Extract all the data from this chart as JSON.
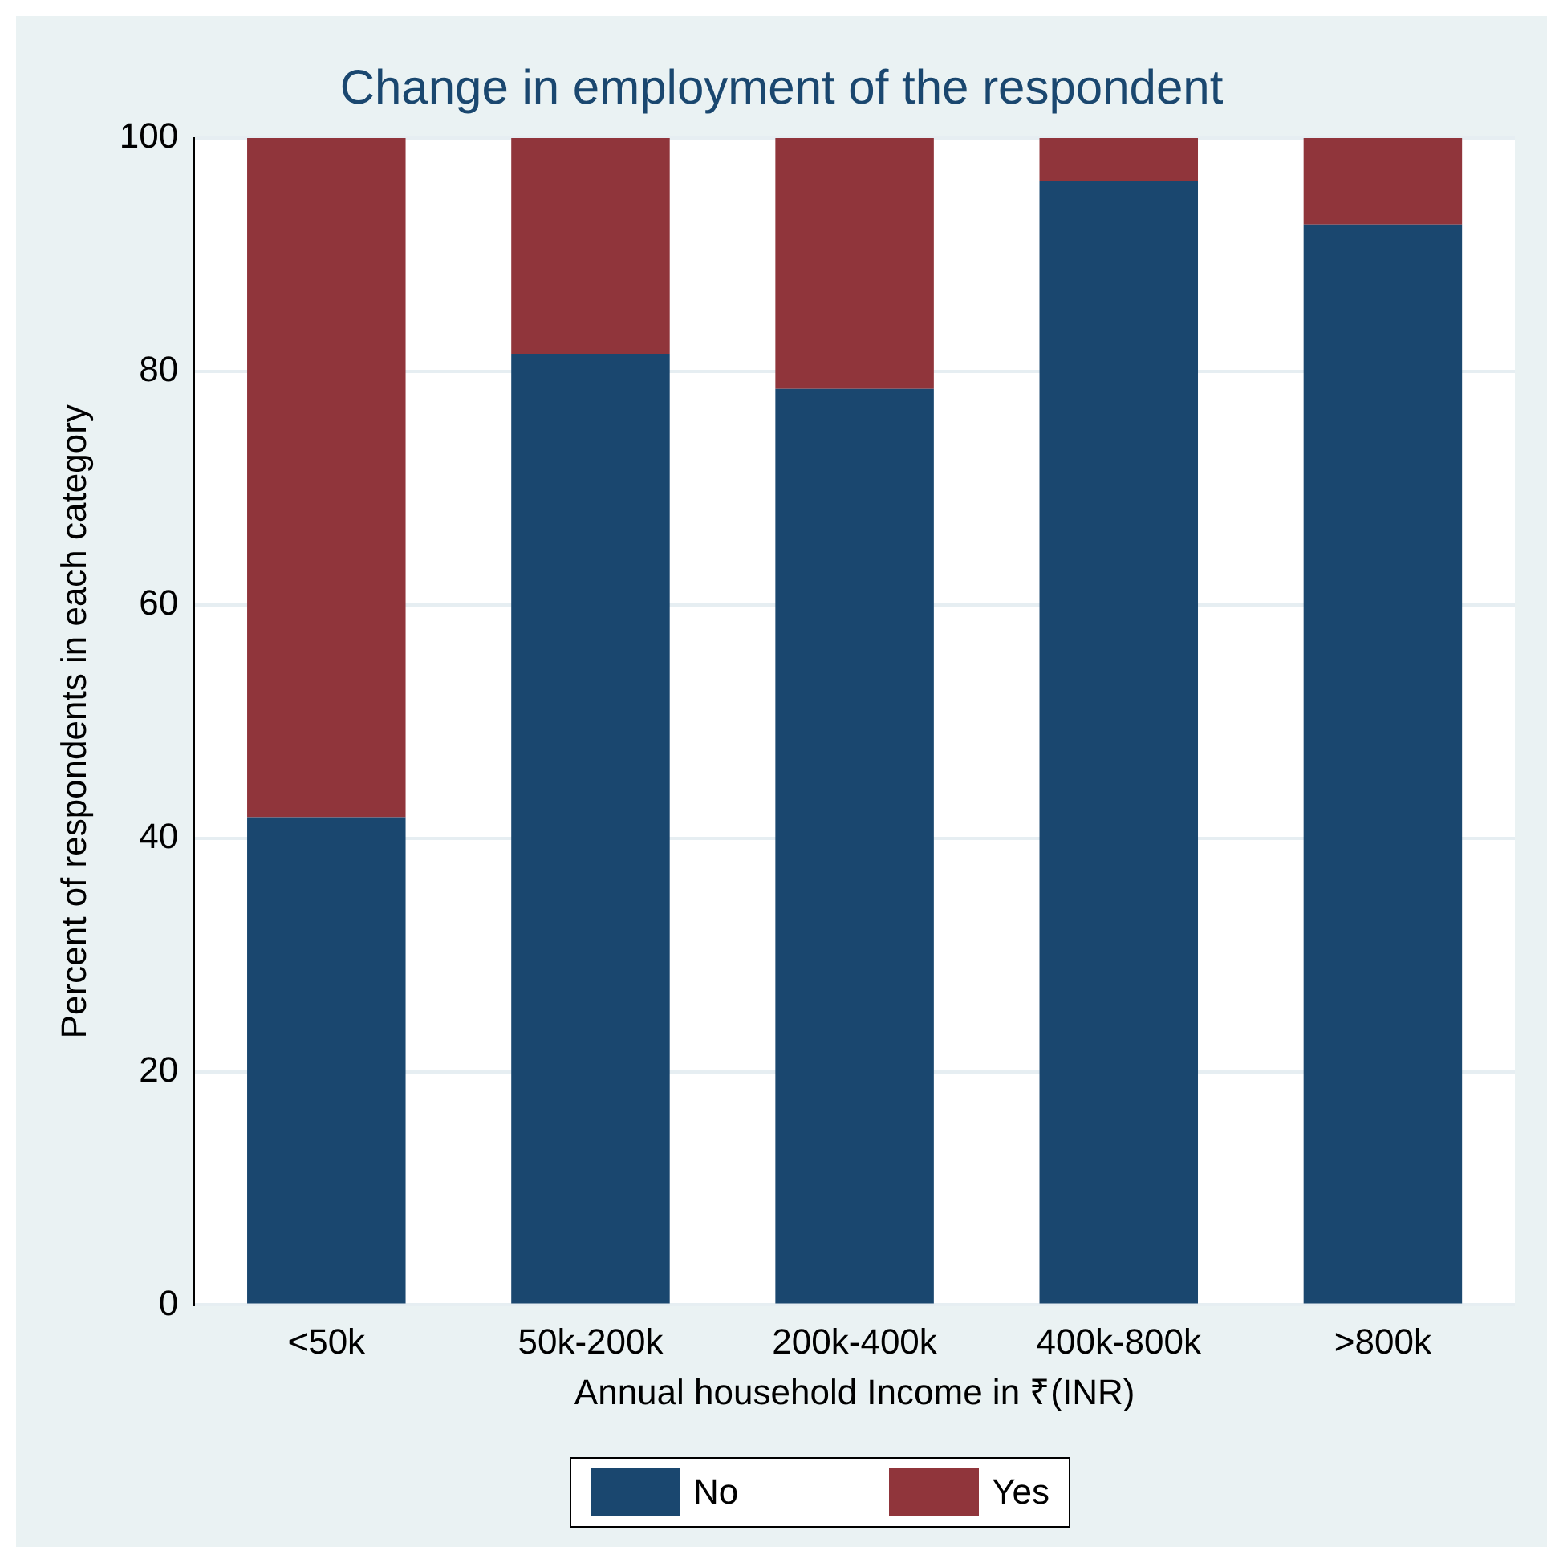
{
  "chart_data": {
    "type": "bar",
    "title": "Change in employment of the respondent",
    "xlabel": "Annual household Income in ₹(INR)",
    "ylabel": "Percent of respondents in each category",
    "categories": [
      "<50k",
      "50k-200k",
      "200k-400k",
      "400k-800k",
      ">800k"
    ],
    "series": [
      {
        "name": "No",
        "color": "#1a476f",
        "values": [
          41.8,
          81.5,
          78.5,
          96.3,
          92.6
        ]
      },
      {
        "name": "Yes",
        "color": "#90353b",
        "values": [
          58.2,
          18.5,
          21.5,
          3.7,
          7.4
        ]
      }
    ],
    "stacked": true,
    "ylim": [
      0,
      100
    ],
    "yticks": [
      0,
      20,
      40,
      60,
      80,
      100
    ],
    "grid": "y",
    "legend": "bottom"
  }
}
